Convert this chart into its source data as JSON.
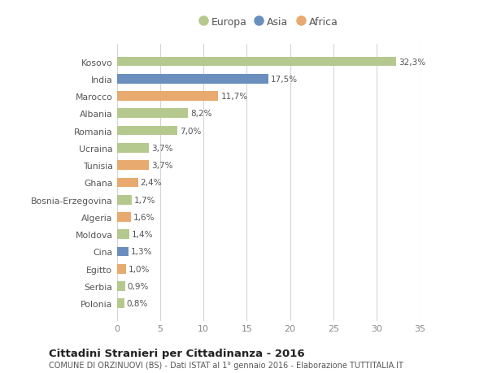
{
  "countries": [
    "Kosovo",
    "India",
    "Marocco",
    "Albania",
    "Romania",
    "Ucraina",
    "Tunisia",
    "Ghana",
    "Bosnia-Erzegovina",
    "Algeria",
    "Moldova",
    "Cina",
    "Egitto",
    "Serbia",
    "Polonia"
  ],
  "values": [
    32.3,
    17.5,
    11.7,
    8.2,
    7.0,
    3.7,
    3.7,
    2.4,
    1.7,
    1.6,
    1.4,
    1.3,
    1.0,
    0.9,
    0.8
  ],
  "labels": [
    "32,3%",
    "17,5%",
    "11,7%",
    "8,2%",
    "7,0%",
    "3,7%",
    "3,7%",
    "2,4%",
    "1,7%",
    "1,6%",
    "1,4%",
    "1,3%",
    "1,0%",
    "0,9%",
    "0,8%"
  ],
  "continents": [
    "Europa",
    "Asia",
    "Africa",
    "Europa",
    "Europa",
    "Europa",
    "Africa",
    "Africa",
    "Europa",
    "Africa",
    "Europa",
    "Asia",
    "Africa",
    "Europa",
    "Europa"
  ],
  "colors": {
    "Europa": "#b5c98e",
    "Asia": "#6a8fbf",
    "Africa": "#e8aa6e"
  },
  "legend_order": [
    "Europa",
    "Asia",
    "Africa"
  ],
  "title": "Cittadini Stranieri per Cittadinanza - 2016",
  "subtitle": "COMUNE DI ORZINUOVI (BS) - Dati ISTAT al 1° gennaio 2016 - Elaborazione TUTTITALIA.IT",
  "xlim": [
    0,
    35
  ],
  "xticks": [
    0,
    5,
    10,
    15,
    20,
    25,
    30,
    35
  ],
  "bg_color": "#ffffff",
  "grid_color": "#d5d5d5",
  "bar_height": 0.55
}
